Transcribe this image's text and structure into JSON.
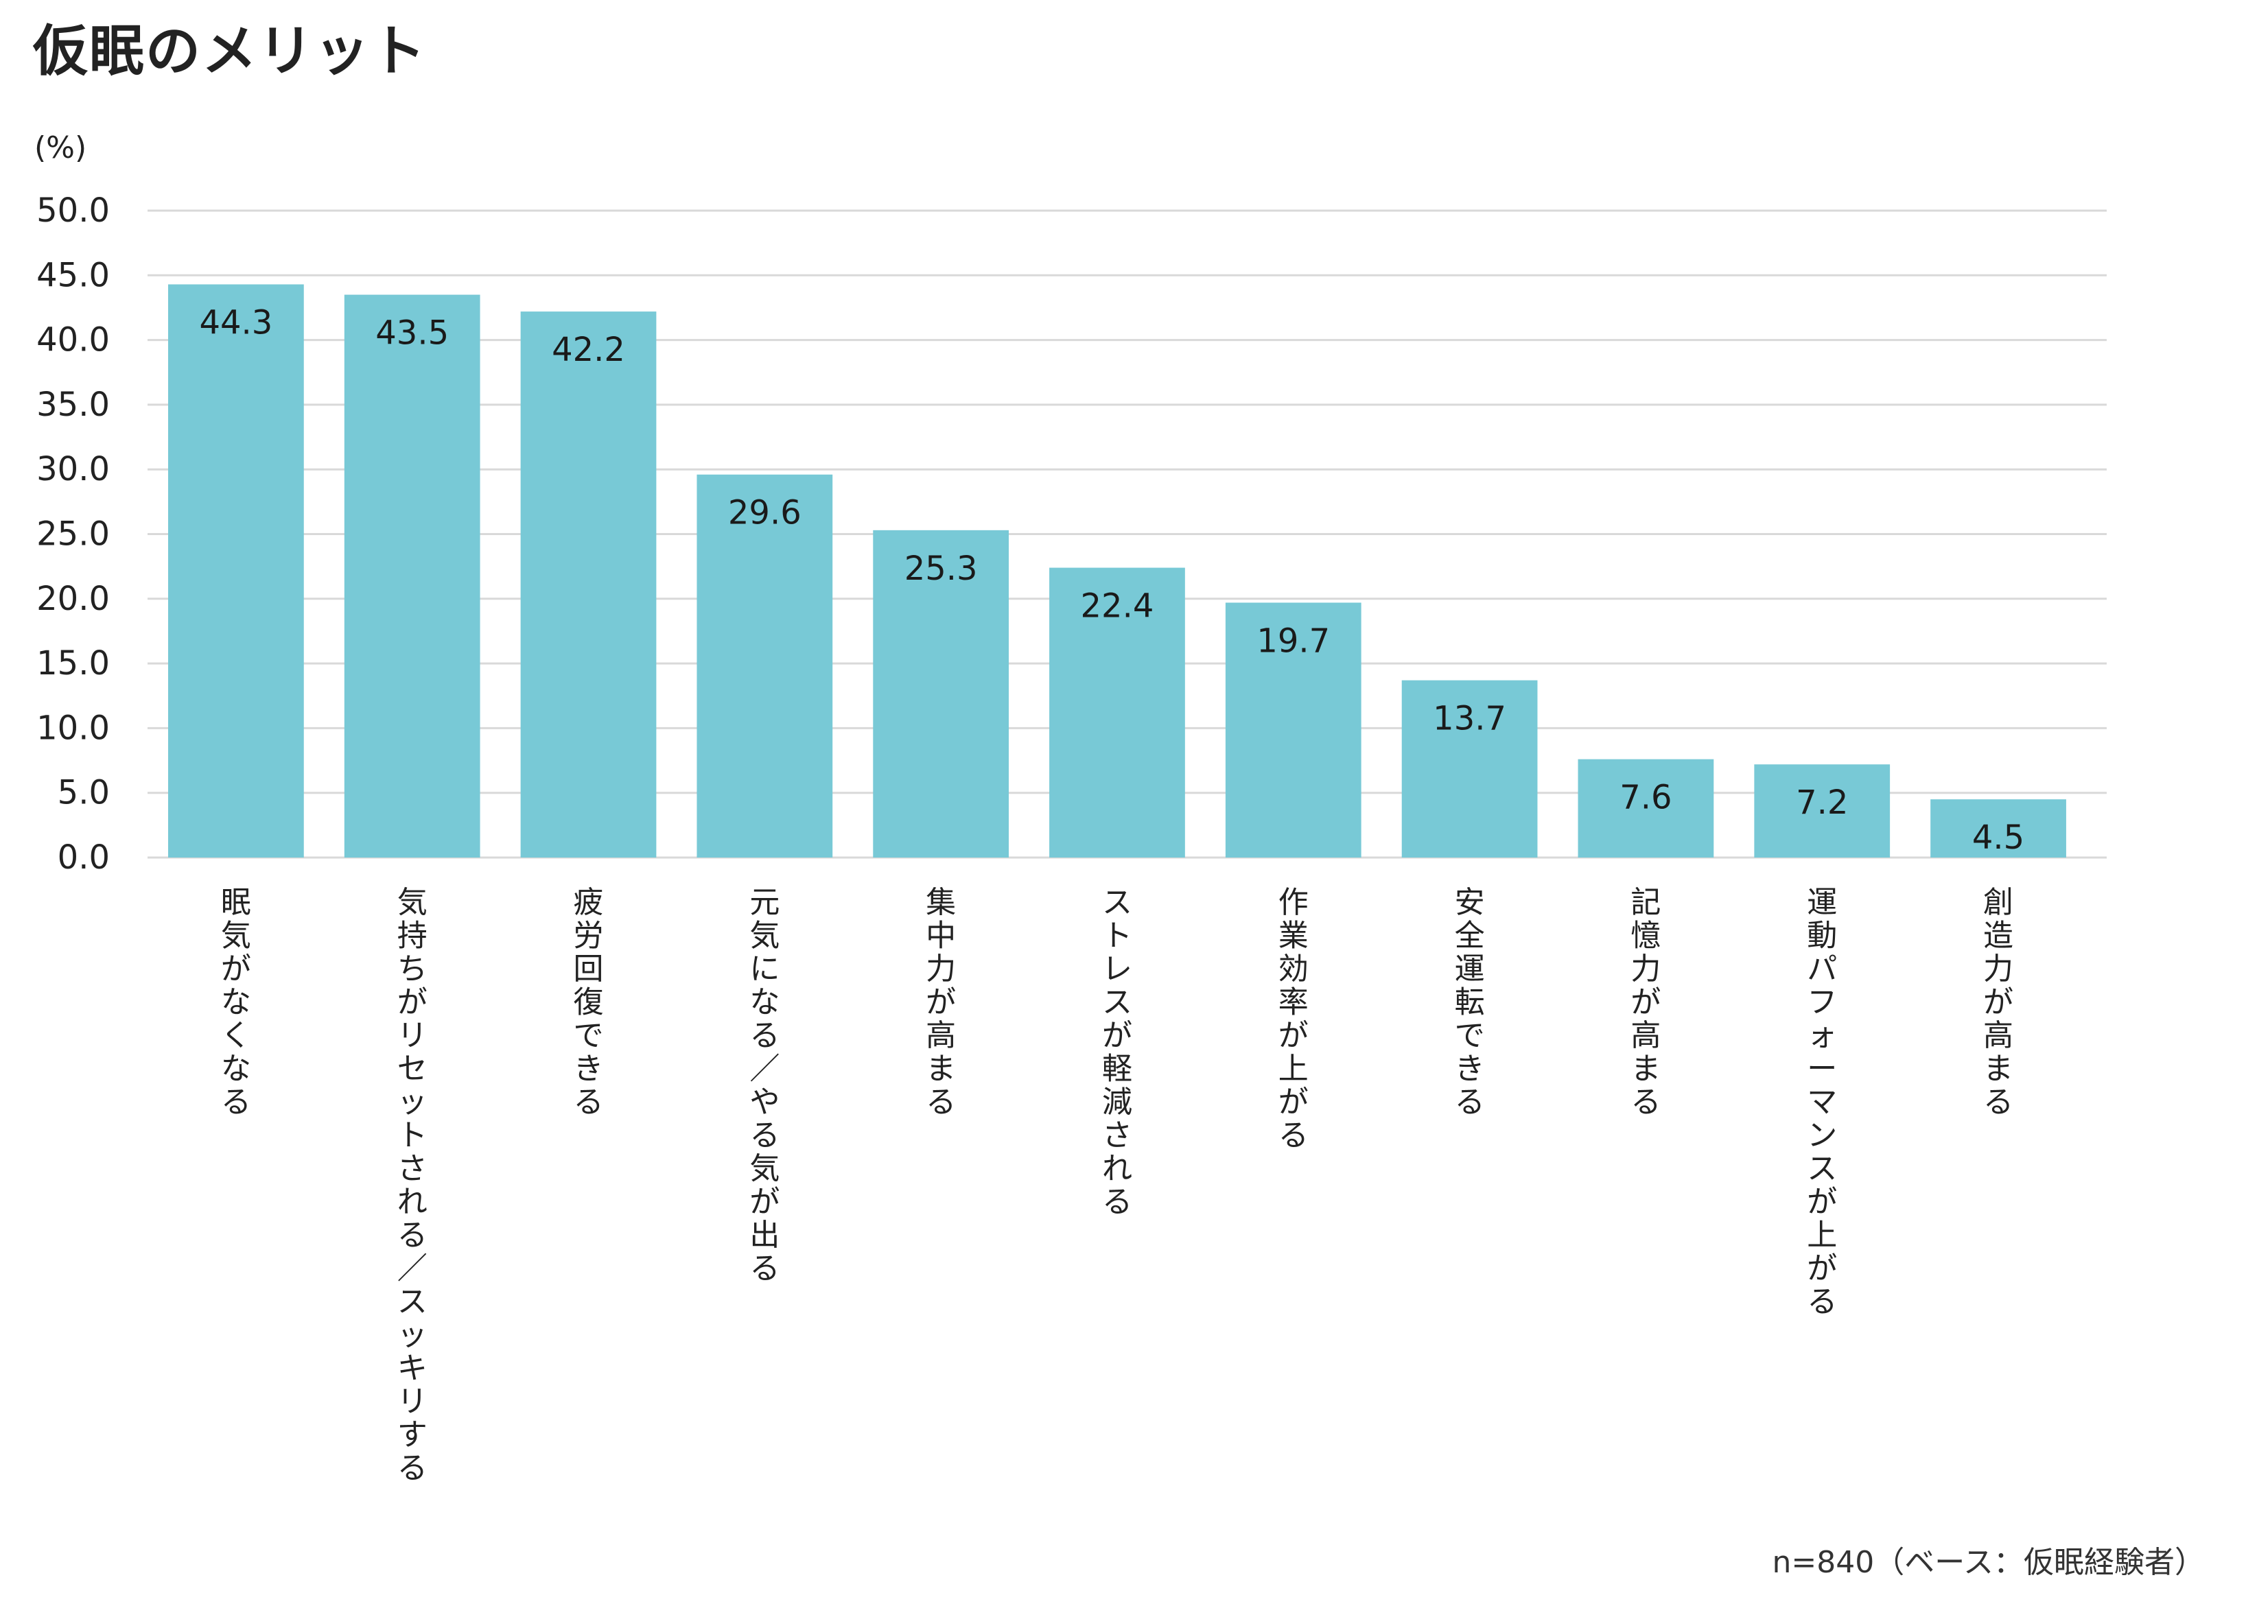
{
  "title": "仮眠のメリット",
  "footnote": "n=840（ベース：仮眠経験者）",
  "chart_data": {
    "type": "bar",
    "title": "仮眠のメリット",
    "ylabel": "(%)",
    "xlabel": "",
    "ylim": [
      0,
      50
    ],
    "yticks": [
      "0.0",
      "5.0",
      "10.0",
      "15.0",
      "20.0",
      "25.0",
      "30.0",
      "35.0",
      "40.0",
      "45.0",
      "50.0"
    ],
    "ytick_values": [
      0,
      5,
      10,
      15,
      20,
      25,
      30,
      35,
      40,
      45,
      50
    ],
    "grid": true,
    "categories": [
      "眠気がなくなる",
      "気持ちがリセットされる／スッキリする",
      "疲労回復できる",
      "元気になる／やる気が出る",
      "集中力が高まる",
      "ストレスが軽減される",
      "作業効率が上がる",
      "安全運転できる",
      "記憶力が高まる",
      "運動パフォーマンスが上がる",
      "創造力が高まる"
    ],
    "values": [
      44.3,
      43.5,
      42.2,
      29.6,
      25.3,
      22.4,
      19.7,
      13.7,
      7.6,
      7.2,
      4.5
    ],
    "value_labels": [
      "44.3",
      "43.5",
      "42.2",
      "29.6",
      "25.3",
      "22.4",
      "19.7",
      "13.7",
      "7.6",
      "7.2",
      "4.5"
    ],
    "bar_color": "#78c9d6",
    "grid_color": "#d9d9d9"
  }
}
